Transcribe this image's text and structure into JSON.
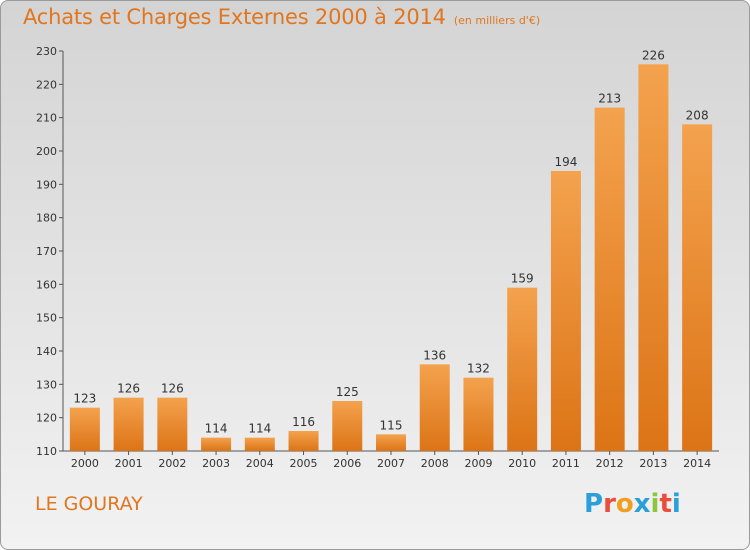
{
  "header": {
    "title": "Achats et Charges Externes 2000 à 2014",
    "subtitle": "(en milliers d'€)"
  },
  "footer": {
    "commune": "LE GOURAY",
    "logo_text": "Proxiti",
    "logo_colors": [
      "#2a9fd8",
      "#e94e3d",
      "#f0a020",
      "#2a9fd8",
      "#8cc63e",
      "#e94e3d",
      "#2a9fd8"
    ]
  },
  "chart_data": {
    "type": "bar",
    "categories": [
      "2000",
      "2001",
      "2002",
      "2003",
      "2004",
      "2005",
      "2006",
      "2007",
      "2008",
      "2009",
      "2010",
      "2011",
      "2012",
      "2013",
      "2014"
    ],
    "values": [
      123,
      126,
      126,
      114,
      114,
      116,
      125,
      115,
      136,
      132,
      159,
      194,
      213,
      226,
      208
    ],
    "data_labels": [
      "123",
      "126",
      "126",
      "114",
      "114",
      "116",
      "125",
      "115",
      "136",
      "132",
      "159",
      "194",
      "213",
      "226",
      "208"
    ],
    "yticks": [
      "110",
      "120",
      "130",
      "140",
      "150",
      "160",
      "170",
      "180",
      "190",
      "200",
      "210",
      "220",
      "230"
    ],
    "ylim": [
      110,
      230
    ],
    "grid": false,
    "bar_color": "#e8801c"
  }
}
